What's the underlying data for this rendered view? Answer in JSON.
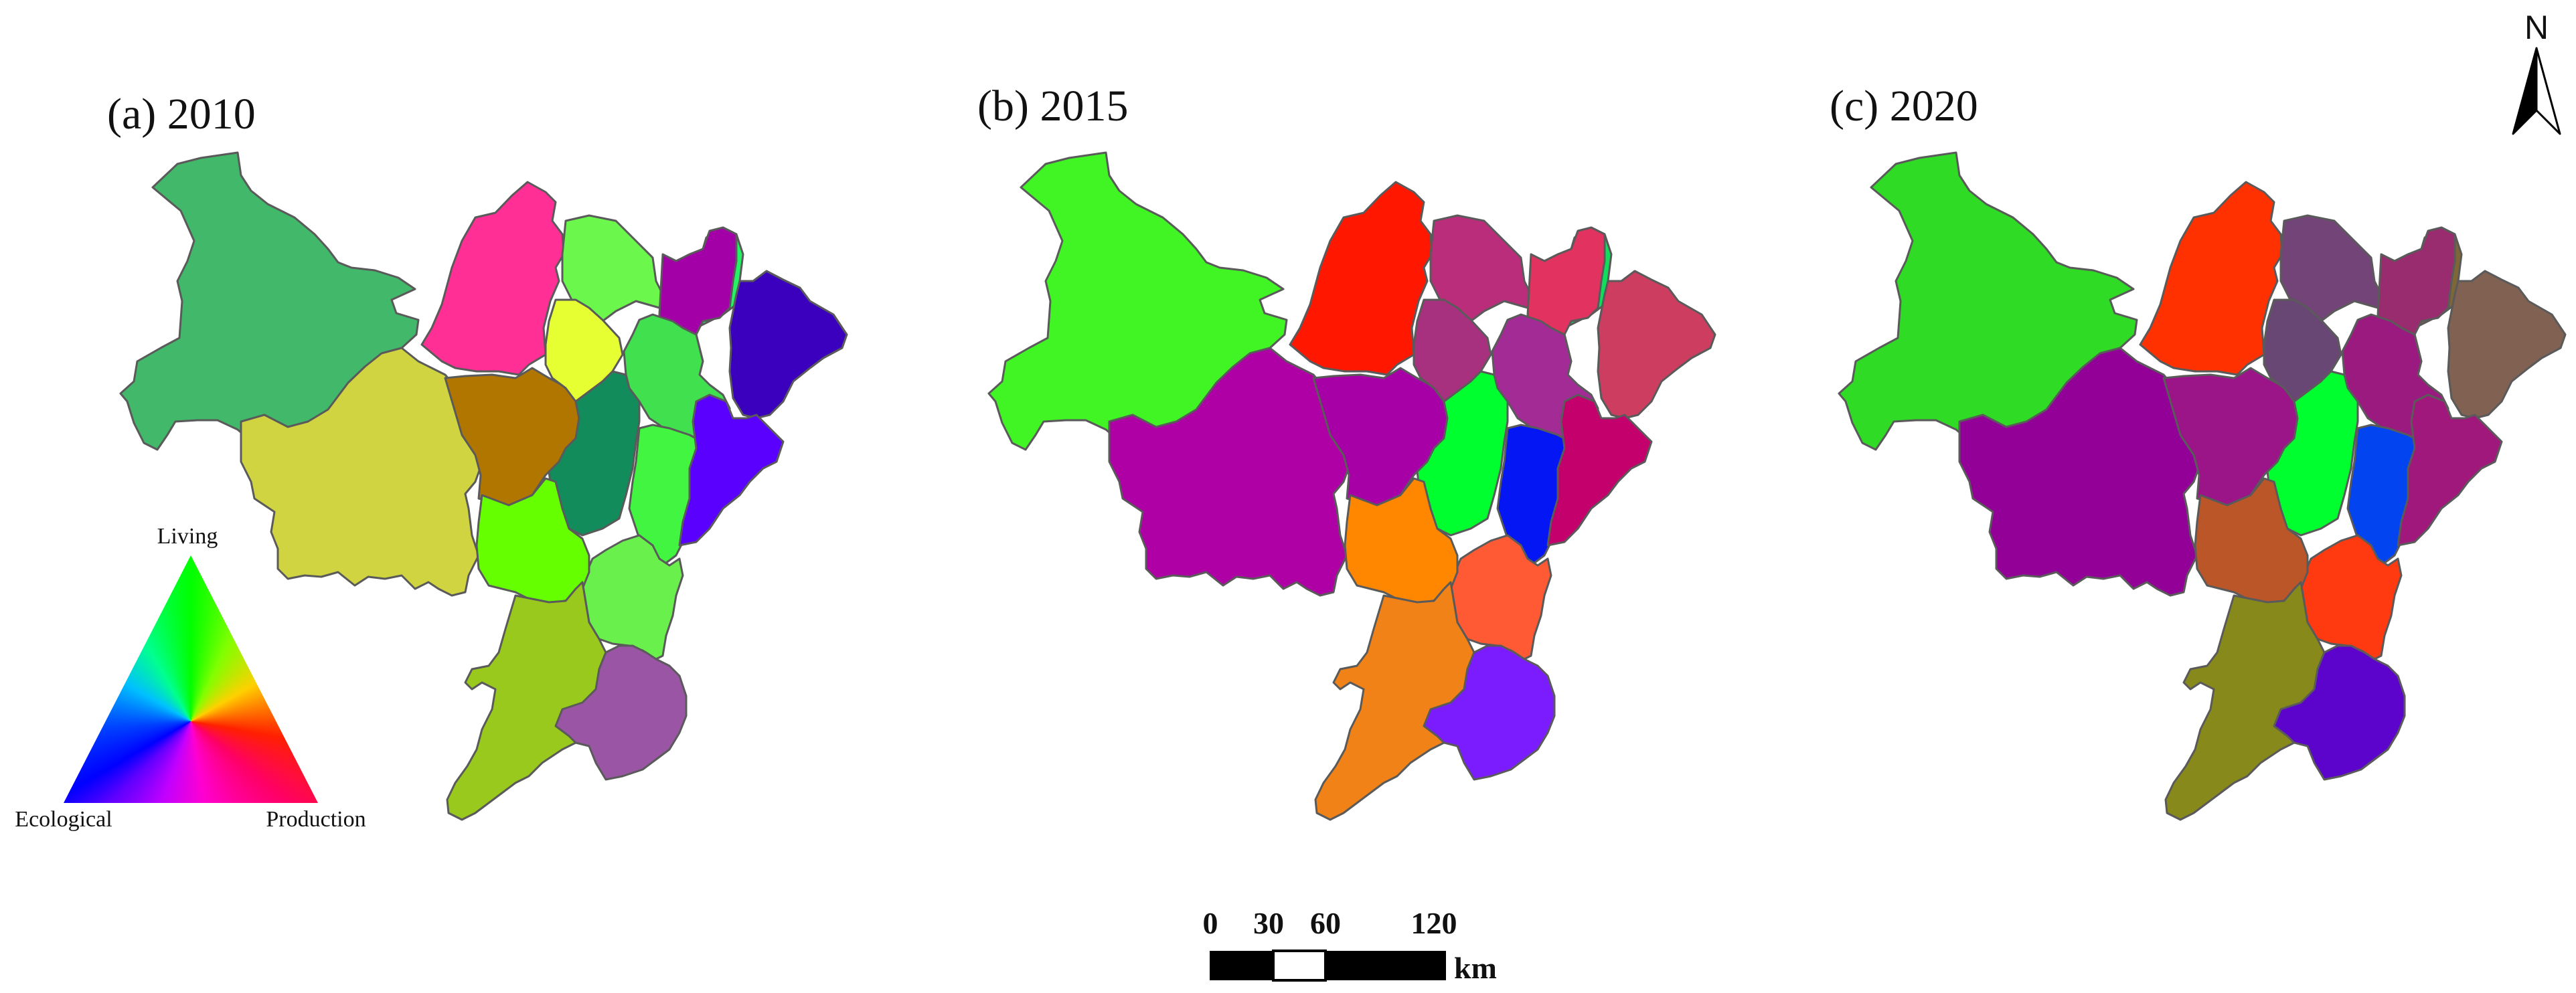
{
  "panels": [
    {
      "title": "(a)  2010",
      "colors": [
        "#41b86a",
        "#d0d441",
        "#ff2f95",
        "#b07600",
        "#6cf74d",
        "#e6ff33",
        "#26f266",
        "#a300a8",
        "#3a00bd",
        "#41e04e",
        "#118c5a",
        "#42f540",
        "#5a00ff",
        "#6af04c",
        "#66ff00",
        "#98c91c",
        "#9a55a4"
      ]
    },
    {
      "title": "(b)  2015",
      "colors": [
        "#41f525",
        "#af00a5",
        "#ff1700",
        "#a600a6",
        "#b92d7a",
        "#a8317f",
        "#12dc5c",
        "#e2325f",
        "#cc3d60",
        "#a32b95",
        "#00ff2f",
        "#0316f3",
        "#c3006c",
        "#ff5a33",
        "#ff8700",
        "#f08218",
        "#7b1cff"
      ]
    },
    {
      "title": "(c)  2020",
      "colors": [
        "#2fdb25",
        "#930097",
        "#ff3100",
        "#9b1488",
        "#734478",
        "#694774",
        "#7f6637",
        "#992c6e",
        "#806152",
        "#9b1a80",
        "#00ff2f",
        "#0245f0",
        "#a1187c",
        "#ff3a10",
        "#ba5628",
        "#87891a",
        "#5c04cc"
      ]
    }
  ],
  "legend": {
    "labels": {
      "top": "Living",
      "left": "Ecological",
      "right": "Production"
    },
    "colors": {
      "top": "#00ff00",
      "left": "#0000ff",
      "right": "#ff0066"
    }
  },
  "scale_bar": {
    "ticks": [
      "0",
      "30",
      "60",
      "120"
    ],
    "unit": "km"
  },
  "north_arrow": {
    "label": "N",
    "icon": "north-arrow-icon"
  }
}
